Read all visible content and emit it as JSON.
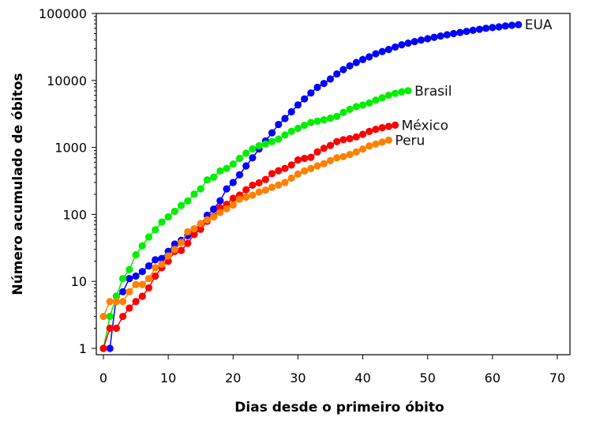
{
  "chart_data": {
    "type": "line",
    "title": "",
    "xlabel": "Dias desde o primeiro óbito",
    "ylabel": "Número acumulado de óbitos",
    "xlim": [
      0,
      70
    ],
    "ylim": [
      1,
      100000
    ],
    "yscale": "log",
    "x_ticks": [
      "0",
      "10",
      "20",
      "30",
      "40",
      "50",
      "60",
      "70"
    ],
    "y_ticks": [
      "1",
      "10",
      "100",
      "1000",
      "10000",
      "100000"
    ],
    "grid": false,
    "legend": "direct labels at line ends",
    "series": [
      {
        "name": "EUA",
        "color": "#0000ff",
        "values": [
          1,
          1,
          6,
          7,
          11,
          12,
          14,
          17,
          21,
          22,
          28,
          36,
          41,
          48,
          58,
          70,
          97,
          120,
          160,
          240,
          300,
          390,
          530,
          700,
          950,
          1250,
          1650,
          2200,
          2700,
          3400,
          4300,
          5300,
          6500,
          7900,
          9000,
          10500,
          12500,
          14500,
          16500,
          18500,
          20500,
          22500,
          25000,
          27000,
          29000,
          31500,
          34000,
          36000,
          38000,
          40000,
          42000,
          44000,
          46000,
          48000,
          50000,
          52000,
          54000,
          56000,
          58000,
          60000,
          61500,
          63000,
          65000,
          66500,
          68000
        ]
      },
      {
        "name": "Brasil",
        "color": "#00ee00",
        "values": [
          1,
          3,
          6,
          11,
          15,
          25,
          34,
          46,
          59,
          77,
          92,
          111,
          136,
          159,
          201,
          240,
          327,
          359,
          445,
          486,
          564,
          686,
          819,
          950,
          1057,
          1124,
          1223,
          1328,
          1532,
          1736,
          1924,
          2141,
          2354,
          2462,
          2587,
          2741,
          2906,
          3331,
          3704,
          4057,
          4286,
          4603,
          5083,
          5513,
          6006,
          6412,
          6761,
          7025
        ]
      },
      {
        "name": "México",
        "color": "#ff0000",
        "values": [
          1,
          2,
          2,
          3,
          4,
          5,
          6,
          8,
          12,
          16,
          20,
          28,
          29,
          37,
          50,
          60,
          79,
          94,
          125,
          141,
          174,
          194,
          233,
          273,
          296,
          332,
          406,
          449,
          486,
          546,
          650,
          686,
          712,
          857,
          970,
          1069,
          1221,
          1305,
          1351,
          1434,
          1569,
          1732,
          1859,
          1972,
          2061,
          2154
        ]
      },
      {
        "name": "Peru",
        "color": "#ff8000",
        "values": [
          3,
          5,
          5,
          5,
          7,
          9,
          9,
          11,
          16,
          18,
          24,
          30,
          38,
          55,
          61,
          73,
          83,
          92,
          107,
          121,
          138,
          169,
          181,
          193,
          216,
          230,
          254,
          274,
          300,
          348,
          400,
          445,
          484,
          530,
          572,
          634,
          700,
          728,
          782,
          854,
          943,
          1051,
          1124,
          1200,
          1286
        ]
      }
    ]
  }
}
